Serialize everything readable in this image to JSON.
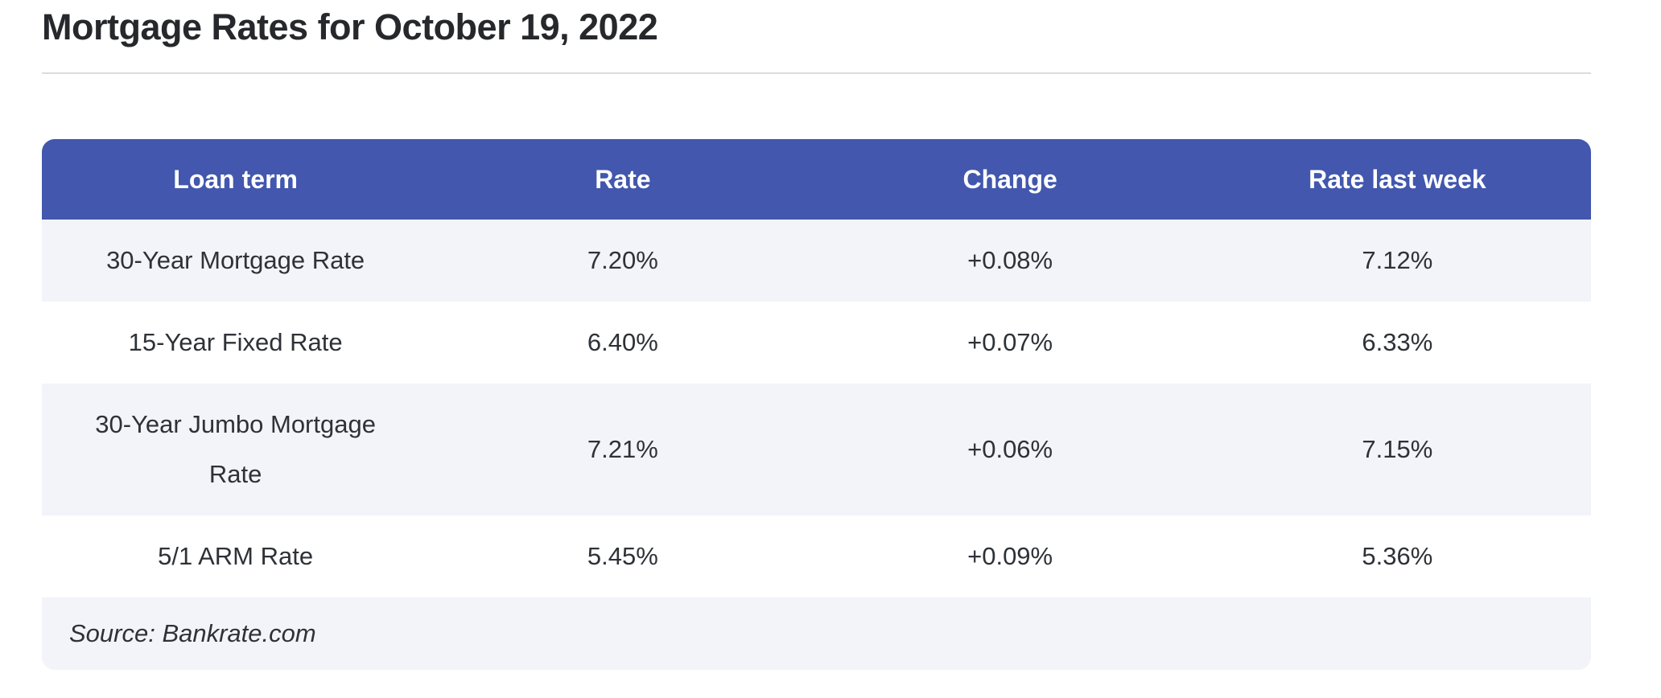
{
  "page": {
    "title": "Mortgage Rates for October 19, 2022"
  },
  "chart_data": {
    "type": "table",
    "title": "Mortgage Rates for October 19, 2022",
    "columns": [
      "Loan term",
      "Rate",
      "Change",
      "Rate last week"
    ],
    "rows": [
      [
        "30-Year Mortgage Rate",
        "7.20%",
        "+0.08%",
        "7.12%"
      ],
      [
        "15-Year Fixed Rate",
        "6.40%",
        "+0.07%",
        "6.33%"
      ],
      [
        "30-Year Jumbo Mortgage Rate",
        "7.21%",
        "+0.06%",
        "7.15%"
      ],
      [
        "5/1 ARM Rate",
        "5.45%",
        "+0.09%",
        "5.36%"
      ]
    ],
    "source": "Source: Bankrate.com",
    "layout": {
      "header_position": "top",
      "row_striping": "odd-rows-shaded",
      "column_alignment": "center",
      "source_row_alignment": "left"
    }
  },
  "colors": {
    "header_bg": "#4257ad",
    "header_text": "#ffffff",
    "row_alt_bg": "#f3f4f9",
    "row_bg": "#ffffff",
    "body_text": "#2e3237",
    "title_text": "#26282c",
    "divider": "#dcdcdc"
  }
}
